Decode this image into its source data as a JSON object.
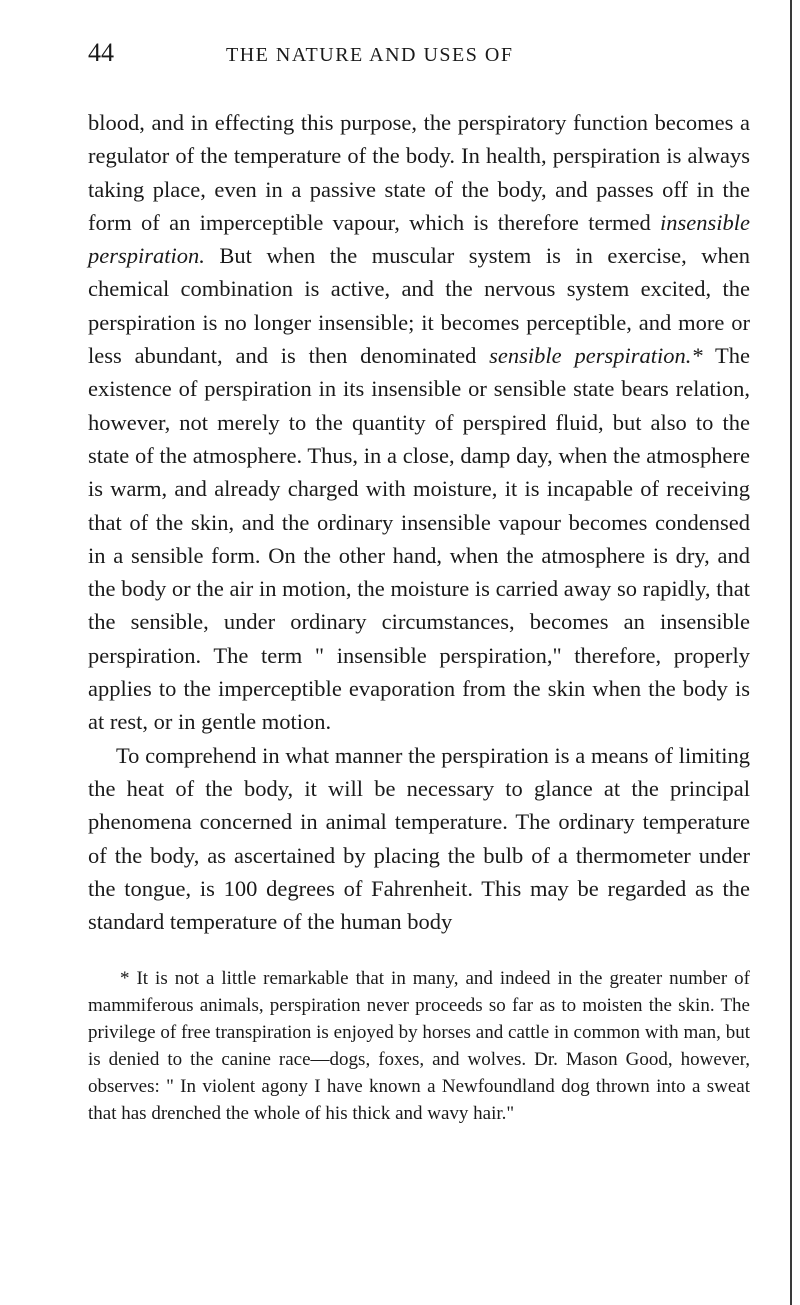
{
  "header": {
    "pageNumber": "44",
    "runningTitle": "THE NATURE AND USES OF"
  },
  "paragraphs": [
    {
      "indent": false,
      "segments": [
        {
          "text": "blood, and in effecting this purpose, the perspiratory func­tion becomes a regulator of the temperature of the body. In health, perspiration is always taking place, even in a passive state of the body, and passes off in the form of an imperceptible vapour, which is therefore termed ",
          "italic": false
        },
        {
          "text": "insensible perspiration.",
          "italic": true
        },
        {
          "text": " But when the muscular system is in exercise, when chemical combination is active, and the nervous system excited, the perspiration is no longer insensible; it becomes perceptible, and more or less abundant, and is then deno­minated ",
          "italic": false
        },
        {
          "text": "sensible perspiration.*",
          "italic": true
        },
        {
          "text": " The existence of perspira­tion in its insensible or sensible state bears relation, however, not merely to the quantity of perspired fluid, but also to the state of the atmosphere. Thus, in a close, damp day, when the atmosphere is warm, and already charged with moisture, it is incapable of receiving that of the skin, and the ordi­nary insensible vapour becomes condensed in a sensible form. On the other hand, when the atmosphere is dry, and the body or the air in motion, the moisture is carried away so rapidly, that the sensible, under ordinary circumstances, becomes an insensible perspiration. The term \" insensible perspiration,\" therefore, properly applies to the imperceptible evaporation from the skin when the body is at rest, or in gentle motion.",
          "italic": false
        }
      ]
    },
    {
      "indent": true,
      "segments": [
        {
          "text": "To comprehend in what manner the perspiration is a means of limiting the heat of the body, it will be necessary to glance at the principal phenomena concerned in animal temperature. The ordinary temperature of the body, as ascertained by placing the bulb of a thermometer under the tongue, is 100 degrees of Fahrenheit. This may be regarded as the standard temperature of the human body",
          "italic": false
        }
      ]
    }
  ],
  "footnote": {
    "segments": [
      {
        "text": "* It is not a little remarkable that in many, and indeed in the greater number of mammiferous animals, perspiration never pro­ceeds so far as to moisten the skin. The privilege of free transpi­ration is enjoyed by horses and cattle in common with man, but is denied to the canine race—dogs, foxes, and wolves. Dr. Mason Good, however, observes: \" In violent agony I have known a New­foundland dog thrown into a sweat that has drenched the whole of his thick and wavy hair.\"",
        "italic": false
      }
    ]
  }
}
